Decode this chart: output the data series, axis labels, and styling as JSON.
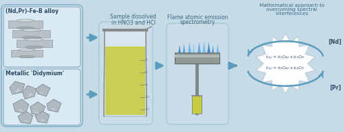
{
  "bg_color": "#c5dce8",
  "box1_label": "(Nd,Pr)-Fe-B alloy",
  "box2_label": "Metallic 'Didymium'",
  "step1_label_1": "Sample dissolved",
  "step1_label_2": "in HNO3 and HCl",
  "step2_label_1": "Flame atomic emission",
  "step2_label_2": "spectrometry",
  "step3_label_1": "Mathematical approach to",
  "step3_label_2": "overcoming spectral",
  "step3_label_3": "interferences",
  "nd_label": "[Nd]",
  "pr_label": "[Pr]",
  "arrow_color": "#5b9cbd",
  "box_border": "#7aafc0",
  "label_color": "#3c6880",
  "dark_label": "#2c4860",
  "starburst_fill": "#ffffff",
  "rod_face": "#b8c0c8",
  "rod_light": "#d0d8e0",
  "rod_dark": "#a0a8b0",
  "chunk_face": "#b0b8c0",
  "chunk_light": "#d0d8e0",
  "liquid_color": "#c8cc40",
  "flame_colors": [
    "#3080c0",
    "#4090d0",
    "#60b0e8",
    "#80c8f0",
    "#50a0e0",
    "#70bcec"
  ],
  "plate_color": "#909898",
  "vial_color": "#c8cc40"
}
